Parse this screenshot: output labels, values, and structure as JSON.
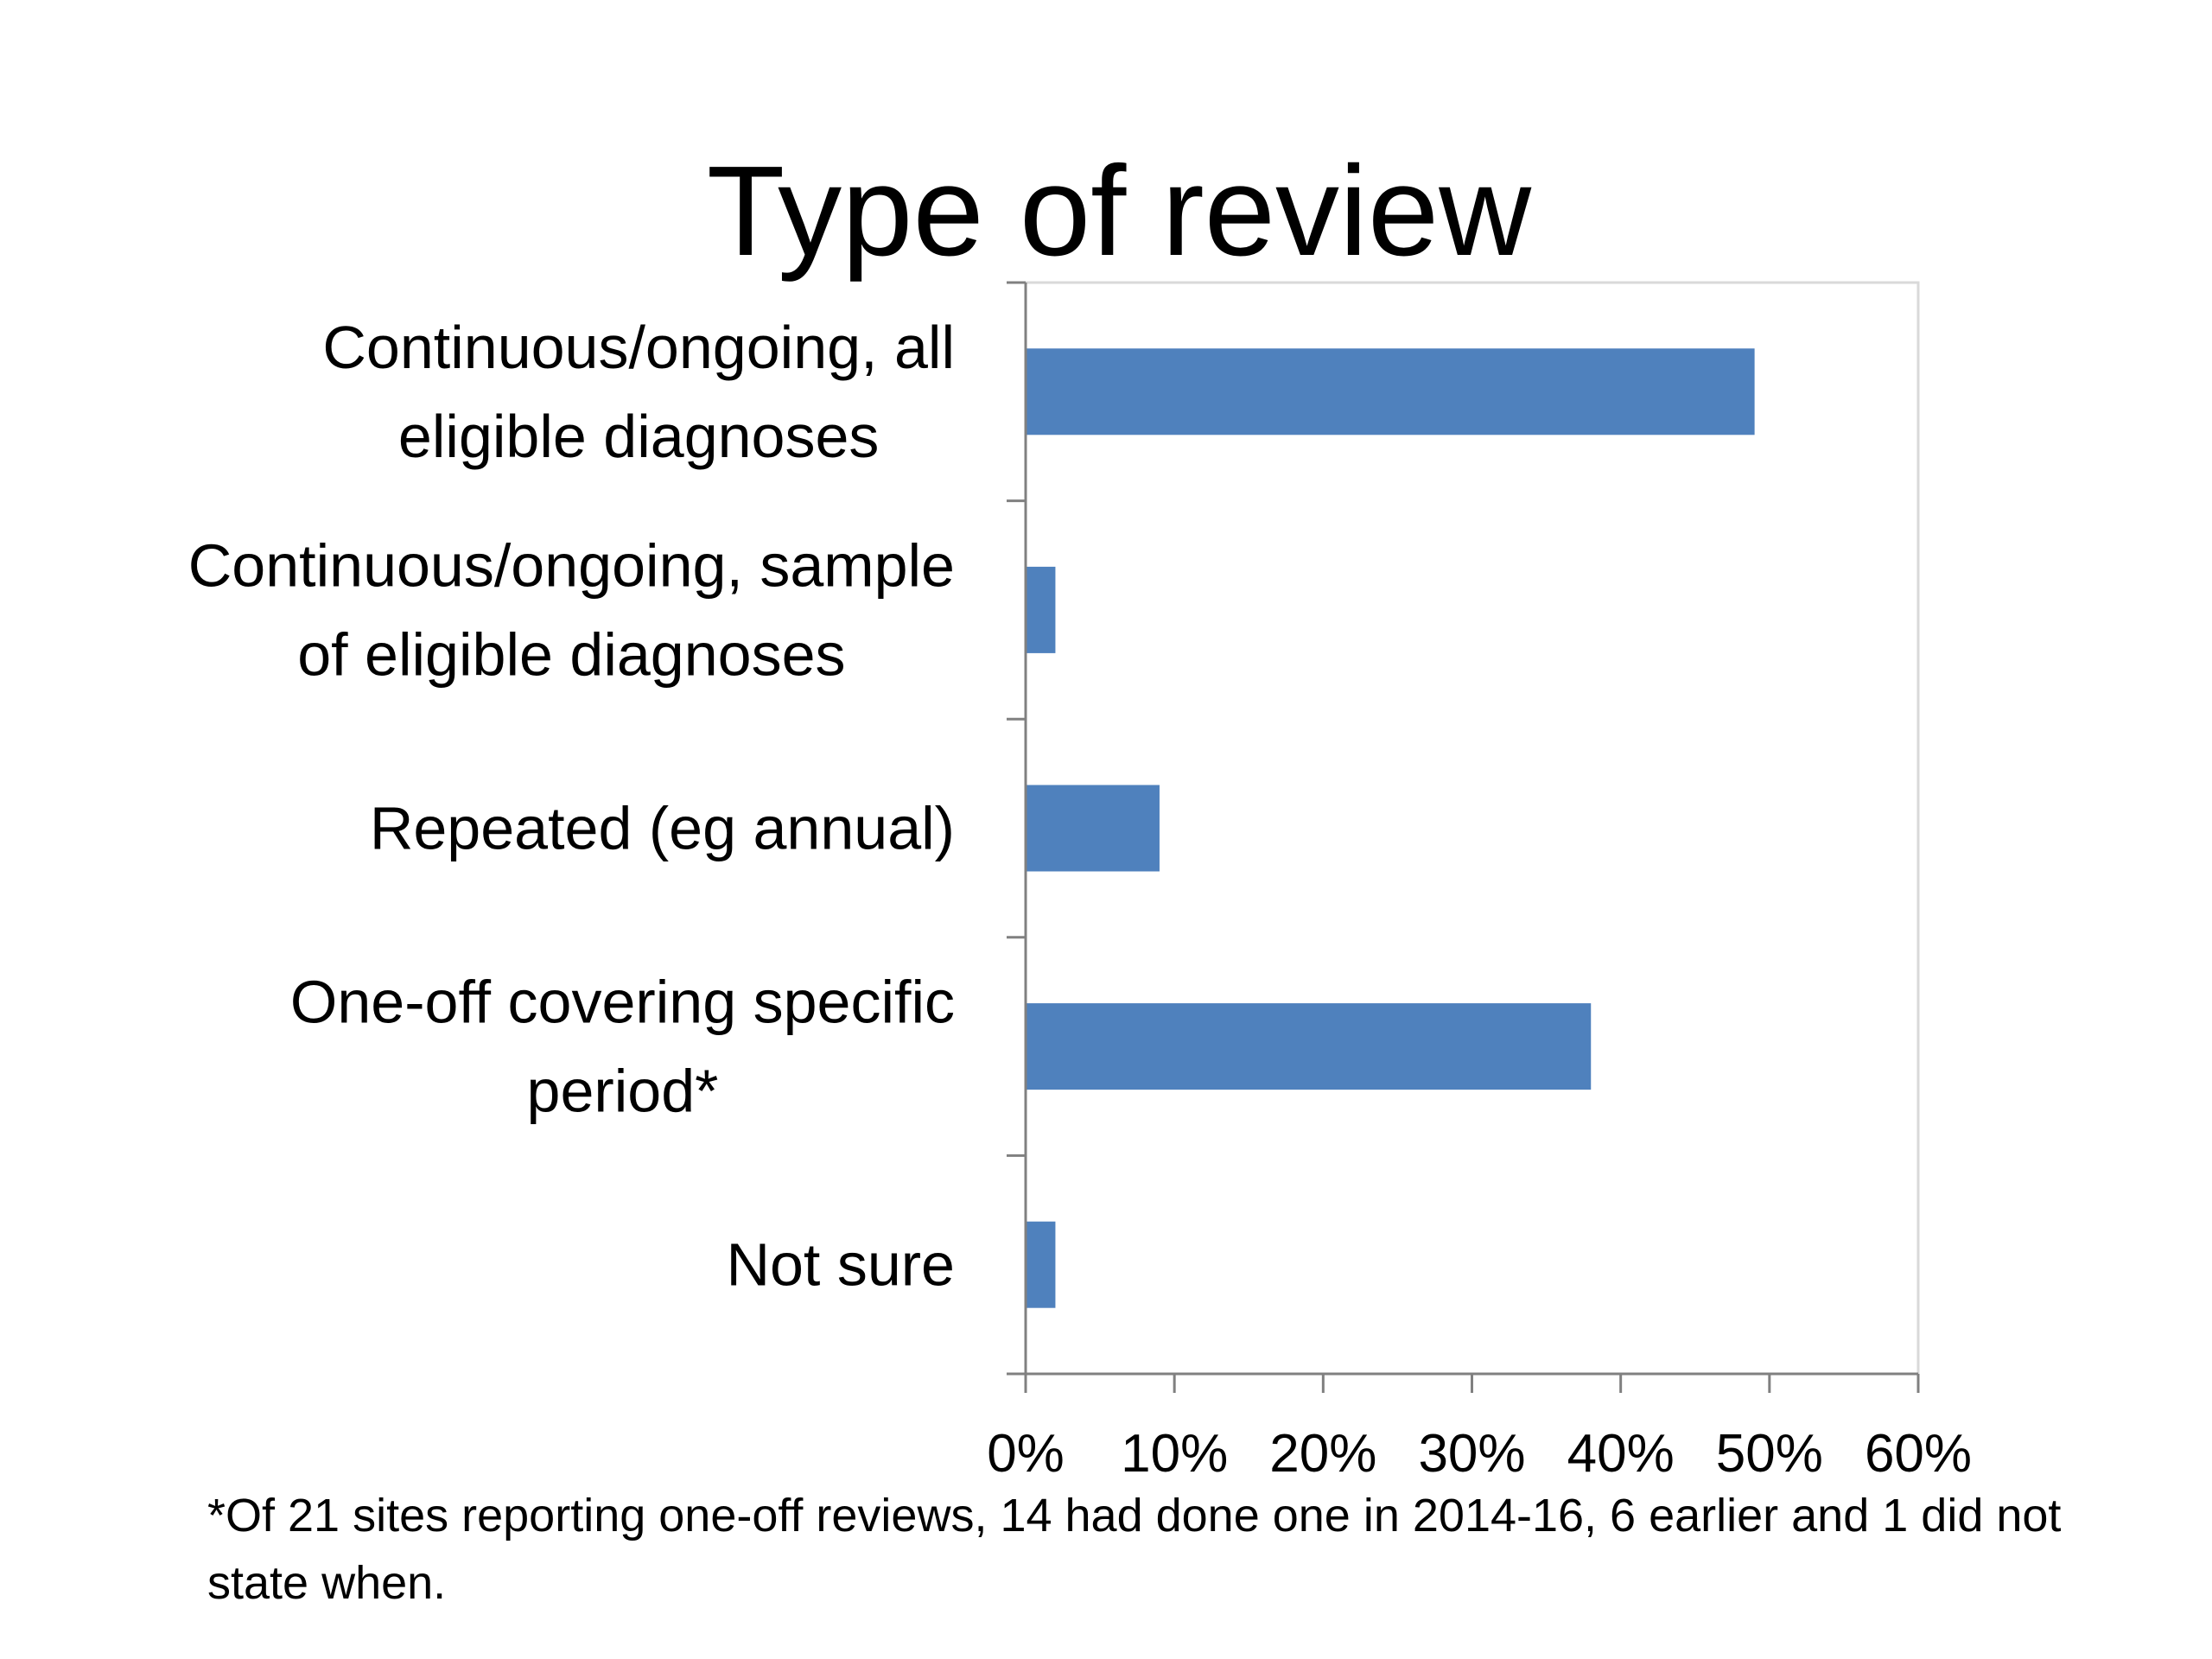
{
  "chart_data": {
    "type": "bar",
    "orientation": "horizontal",
    "title": "Type of review",
    "categories": [
      [
        "Continuous/ongoing, all",
        "eligible diagnoses"
      ],
      [
        "Continuous/ongoing, sample",
        "of eligible diagnoses"
      ],
      [
        "Repeated (eg annual)"
      ],
      [
        "One-off covering specific",
        "period*"
      ],
      [
        "Not sure"
      ]
    ],
    "values": [
      49,
      2,
      9,
      38,
      2
    ],
    "xlim": [
      0,
      60
    ],
    "xticks": [
      0,
      10,
      20,
      30,
      40,
      50,
      60
    ],
    "tick_labels": [
      "0%",
      "10%",
      "20%",
      "30%",
      "40%",
      "50%",
      "60%"
    ],
    "bar_color": "#4f81bd",
    "grid": false,
    "legend": "none",
    "footnote": "*Of 21 sites reporting one-off reviews, 14 had done one in 2014-16, 6 earlier and 1 did not state when."
  }
}
